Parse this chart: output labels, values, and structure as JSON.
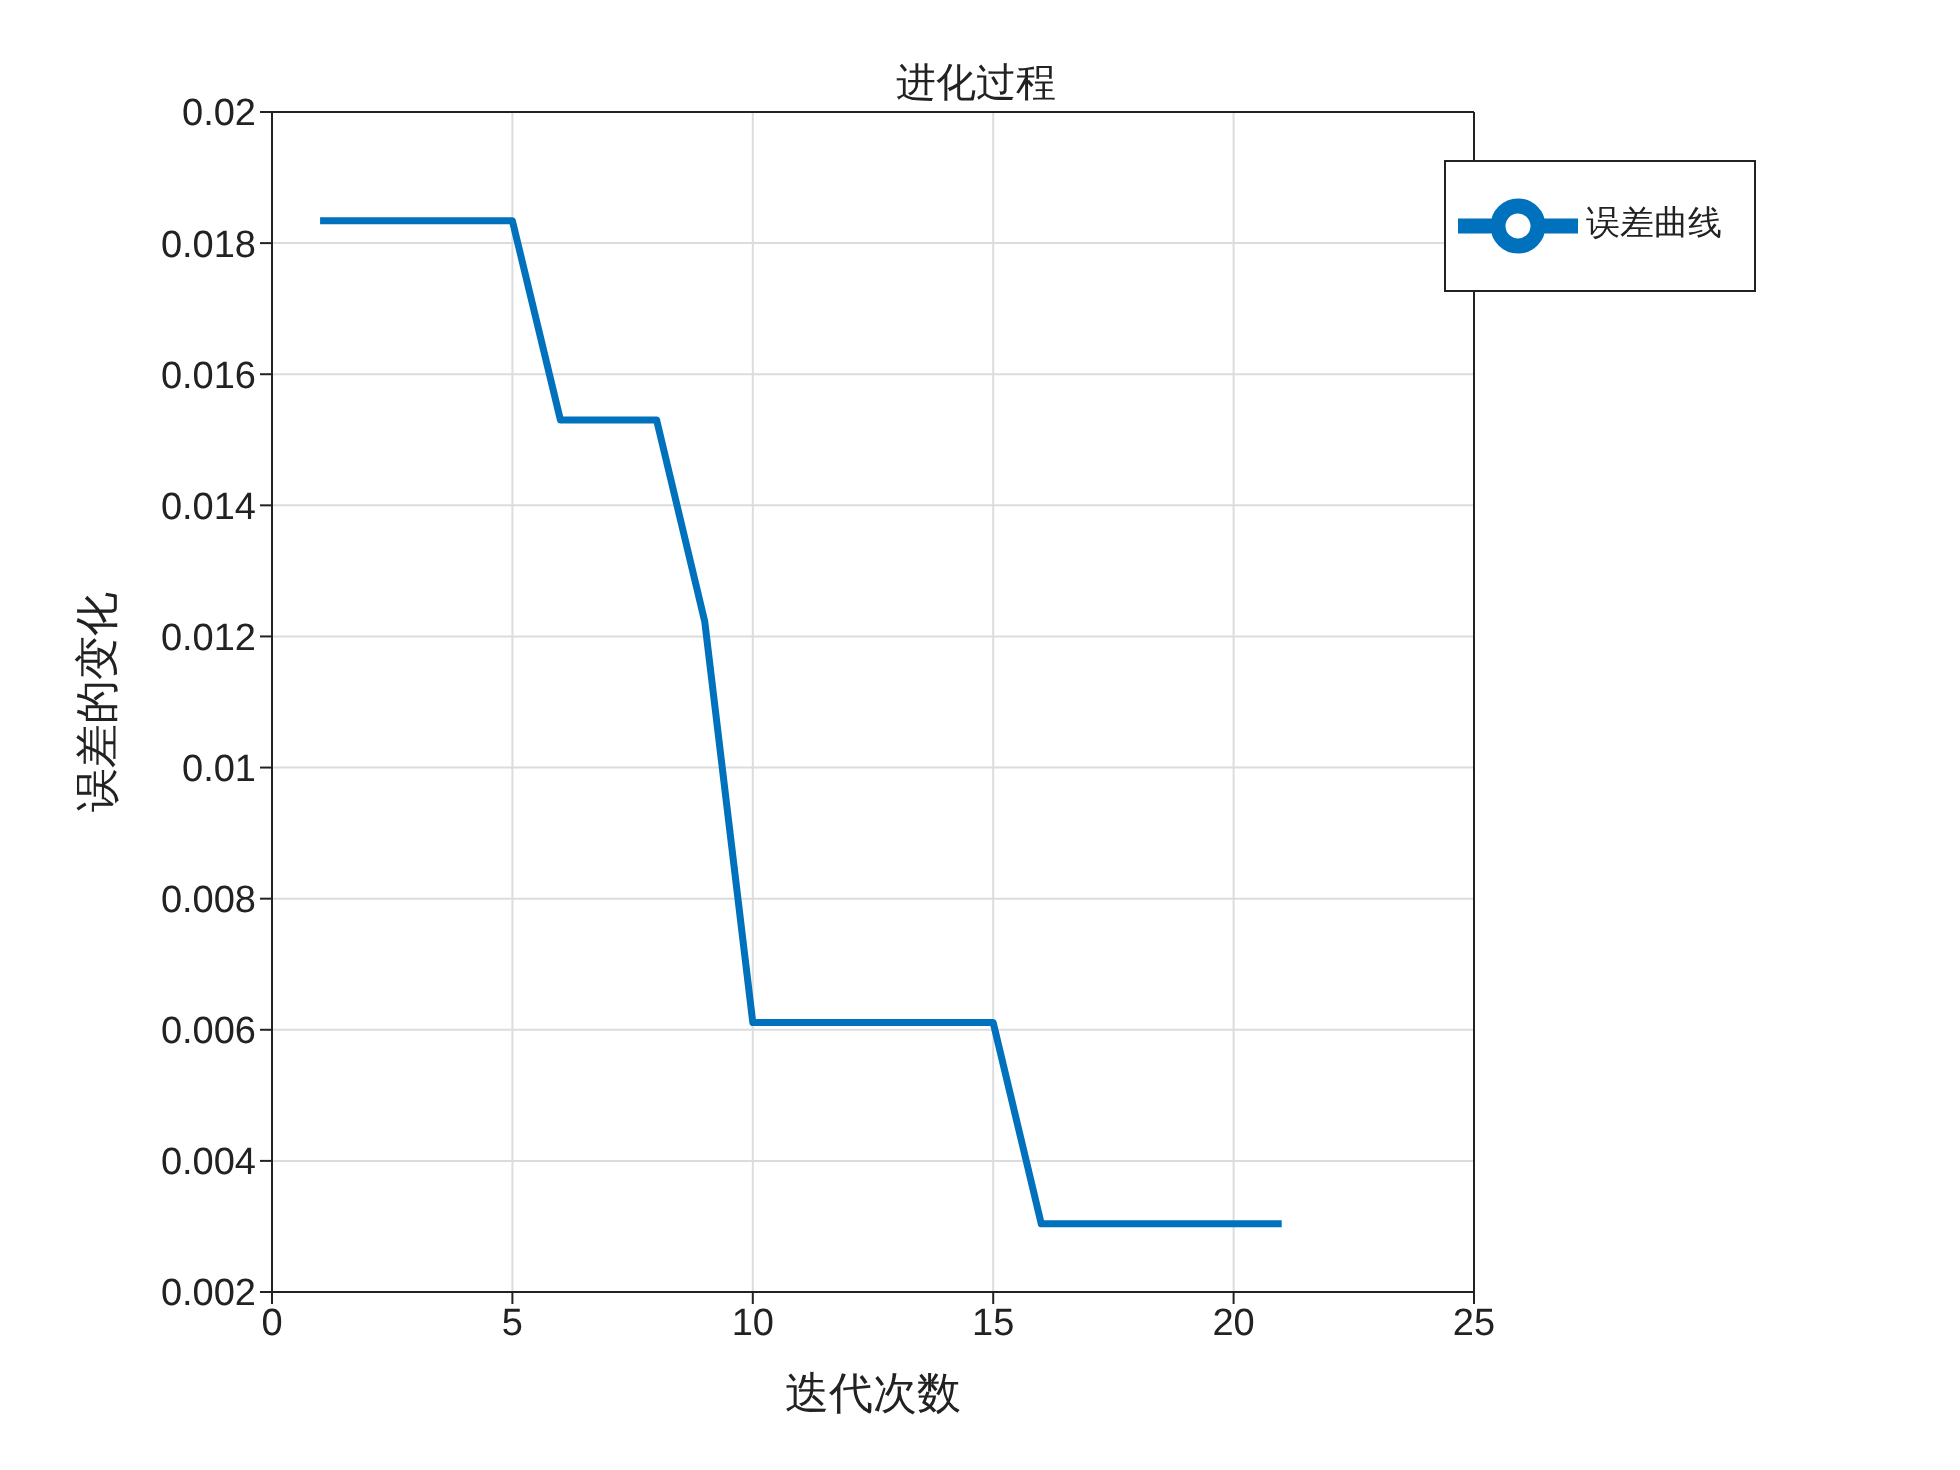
{
  "chart_data": {
    "type": "line",
    "title": "进化过程",
    "xlabel": "迭代次数",
    "ylabel": "误差的变化",
    "x": [
      1,
      2,
      3,
      4,
      5,
      6,
      7,
      8,
      9,
      10,
      11,
      12,
      13,
      14,
      15,
      16,
      17,
      18,
      19,
      20,
      21
    ],
    "series": [
      {
        "name": "误差曲线",
        "color": "#0072bd",
        "values": [
          0.01834,
          0.01834,
          0.01834,
          0.01834,
          0.01834,
          0.0153,
          0.0153,
          0.0153,
          0.01223,
          0.00611,
          0.00611,
          0.00611,
          0.00611,
          0.00611,
          0.00611,
          0.00304,
          0.00304,
          0.00304,
          0.00304,
          0.00304,
          0.00304
        ]
      }
    ],
    "xlim": [
      0,
      25
    ],
    "xticks": [
      0,
      5,
      10,
      15,
      20,
      25
    ],
    "ylim": [
      0.002,
      0.02
    ],
    "yticks": [
      0.002,
      0.004,
      0.006,
      0.008,
      0.01,
      0.012,
      0.014,
      0.016,
      0.018,
      0.02
    ],
    "grid": true,
    "legend": "top right",
    "marker": "none",
    "line_style": "solid"
  }
}
